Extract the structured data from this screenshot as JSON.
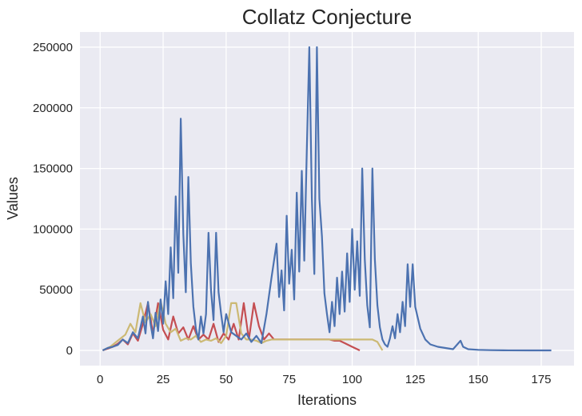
{
  "colors": {
    "background": "#ffffff",
    "plot_area": "#eaeaf2",
    "grid": "#ffffff",
    "text": "#262626",
    "palette": [
      "#4c72b0",
      "#c44e52",
      "#ccb974"
    ]
  },
  "chart_data": {
    "type": "line",
    "title": "Collatz Conjecture",
    "xlabel": "Iterations",
    "ylabel": "Values",
    "xlim": [
      -8,
      188
    ],
    "ylim": [
      -12500,
      262500
    ],
    "xticks": [
      0,
      25,
      50,
      75,
      100,
      125,
      150,
      175
    ],
    "yticks": [
      0,
      50000,
      100000,
      150000,
      200000,
      250000
    ],
    "xtick_labels": [
      "0",
      "25",
      "50",
      "75",
      "100",
      "125",
      "150",
      "175"
    ],
    "ytick_labels": [
      "0",
      "50000",
      "100000",
      "150000",
      "200000",
      "250000"
    ],
    "grid": true,
    "legend": "none",
    "series": [
      {
        "color": "#c44e52",
        "x": [
          1,
          3,
          5,
          7,
          9,
          11,
          13,
          15,
          17,
          19,
          21,
          23,
          25,
          27,
          29,
          31,
          33,
          35,
          37,
          39,
          41,
          43,
          45,
          47,
          49,
          51,
          53,
          55,
          57,
          59,
          61,
          63,
          65,
          67,
          69,
          71,
          73,
          75,
          77,
          79,
          81,
          83,
          85,
          87,
          89,
          91,
          93,
          95,
          97,
          100,
          103
        ],
        "values": [
          0,
          1500,
          3000,
          5500,
          9000,
          5000,
          14000,
          8000,
          22000,
          39000,
          14000,
          39000,
          17000,
          9000,
          28000,
          14000,
          19000,
          9000,
          20000,
          9000,
          13000,
          9000,
          22000,
          7000,
          14000,
          9000,
          22000,
          9000,
          39000,
          9000,
          39000,
          20000,
          9000,
          14000,
          9000,
          9000,
          9000,
          9000,
          9000,
          9000,
          9000,
          9000,
          9000,
          9000,
          9000,
          9000,
          8000,
          8000,
          6000,
          3000,
          0
        ]
      },
      {
        "color": "#ccb974",
        "x": [
          1,
          4,
          7,
          10,
          12,
          14,
          16,
          18,
          20,
          22,
          24,
          26,
          28,
          30,
          32,
          34,
          36,
          38,
          40,
          42,
          44,
          46,
          48,
          50,
          52,
          54,
          56,
          58,
          60,
          62,
          64,
          66,
          68,
          70,
          80,
          90,
          100,
          104,
          108,
          110,
          112
        ],
        "values": [
          0,
          3000,
          8000,
          13000,
          22000,
          15000,
          39000,
          23000,
          30000,
          20000,
          41000,
          22000,
          15000,
          18000,
          8000,
          10000,
          9000,
          12000,
          7000,
          9000,
          8000,
          10000,
          6000,
          12000,
          39000,
          39000,
          14000,
          9000,
          9000,
          8000,
          6000,
          8000,
          9000,
          9000,
          9000,
          9000,
          9000,
          9000,
          9000,
          7000,
          0
        ]
      },
      {
        "color": "#4c72b0",
        "x": [
          1,
          3,
          5,
          7,
          9,
          11,
          13,
          15,
          17,
          18,
          19,
          20,
          21,
          22,
          23,
          24,
          25,
          26,
          27,
          28,
          29,
          30,
          31,
          32,
          33,
          34,
          35,
          36,
          37,
          38,
          39,
          40,
          41,
          42,
          43,
          44,
          45,
          46,
          47,
          48,
          49,
          50,
          52,
          54,
          56,
          58,
          60,
          62,
          64,
          66,
          68,
          70,
          71,
          72,
          73,
          74,
          75,
          76,
          77,
          78,
          79,
          80,
          81,
          82,
          83,
          84,
          85,
          86,
          87,
          88,
          89,
          90,
          91,
          92,
          93,
          94,
          95,
          96,
          97,
          98,
          99,
          100,
          101,
          102,
          103,
          104,
          105,
          106,
          107,
          108,
          109,
          110,
          111,
          112,
          113,
          114,
          115,
          116,
          117,
          118,
          119,
          120,
          121,
          122,
          123,
          124,
          125,
          127,
          129,
          131,
          134,
          137,
          140,
          143,
          144,
          146,
          150,
          155,
          160,
          170,
          179
        ],
        "values": [
          0,
          2000,
          3000,
          4500,
          9000,
          6000,
          15000,
          10000,
          28000,
          14000,
          40000,
          22000,
          10000,
          31000,
          16000,
          42000,
          22000,
          57000,
          30000,
          85000,
          43000,
          127000,
          64000,
          191000,
          96000,
          48000,
          143000,
          72000,
          36000,
          18000,
          9000,
          28000,
          14000,
          30000,
          97000,
          49000,
          25000,
          97000,
          48000,
          30000,
          15000,
          30000,
          15000,
          12000,
          9000,
          14000,
          7000,
          12000,
          6000,
          30000,
          60000,
          88000,
          44000,
          66000,
          33000,
          111000,
          55000,
          83000,
          42000,
          130000,
          65000,
          148000,
          74000,
          166000,
          250000,
          125000,
          63000,
          250000,
          125000,
          94000,
          47000,
          30000,
          15000,
          40000,
          20000,
          60000,
          30000,
          65000,
          32000,
          80000,
          40000,
          100000,
          50000,
          90000,
          45000,
          150000,
          75000,
          37000,
          19000,
          150000,
          75000,
          37000,
          19000,
          9000,
          5000,
          3000,
          10000,
          20000,
          10000,
          30000,
          15000,
          40000,
          20000,
          71000,
          36000,
          71000,
          36000,
          18000,
          9000,
          5000,
          3000,
          2000,
          1000,
          8000,
          3000,
          1000,
          500,
          200,
          100,
          0,
          0
        ]
      }
    ]
  }
}
